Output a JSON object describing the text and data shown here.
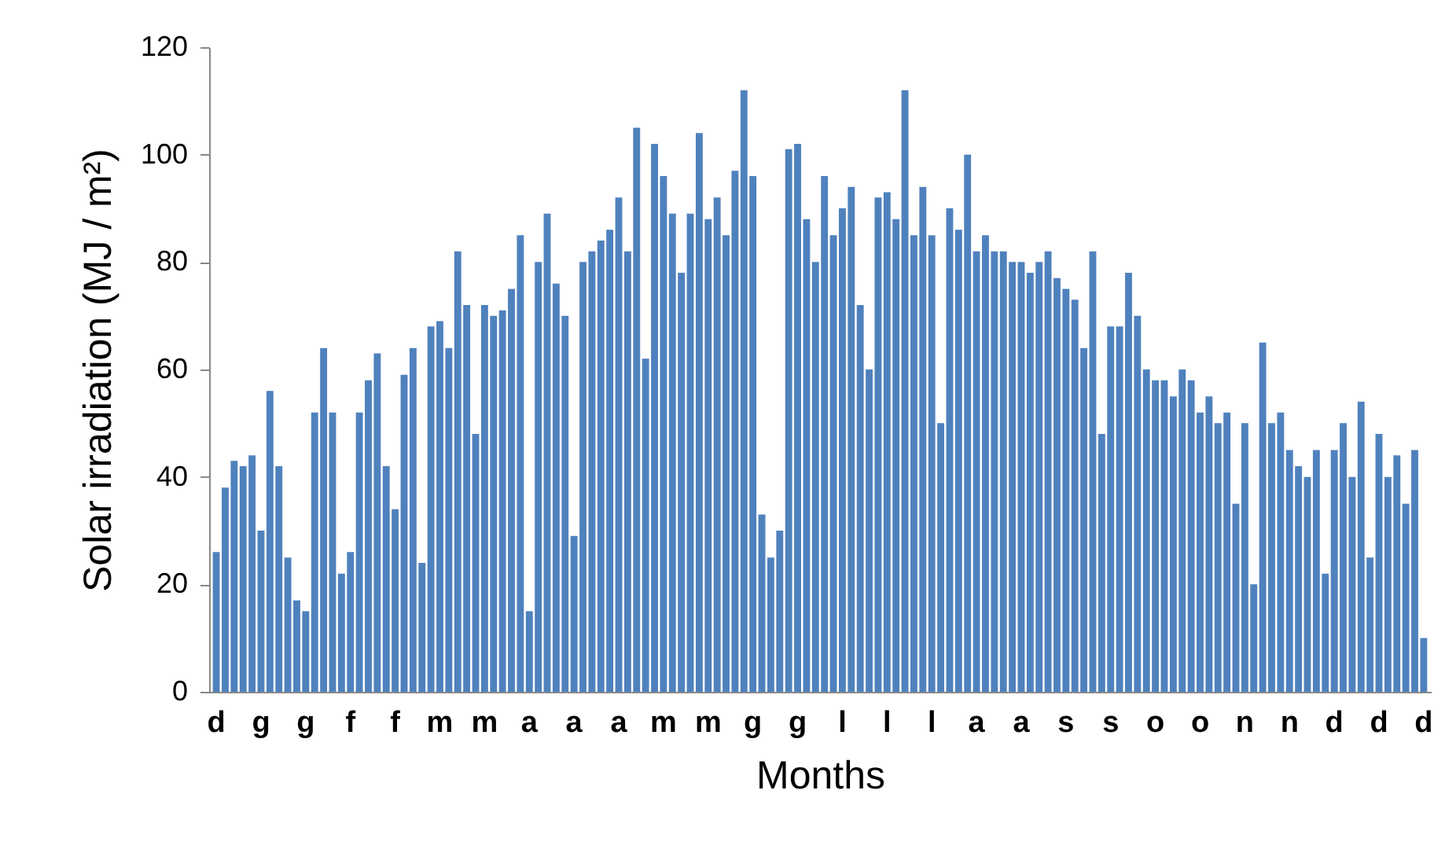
{
  "chart_data": {
    "type": "bar",
    "xlabel": "Months",
    "ylabel": "Solar irradiation (MJ / m²)",
    "categories": [
      "d",
      null,
      null,
      null,
      null,
      "g",
      null,
      null,
      null,
      null,
      "g",
      null,
      null,
      null,
      null,
      "f",
      null,
      null,
      null,
      null,
      "f",
      null,
      null,
      null,
      null,
      "m",
      null,
      null,
      null,
      null,
      "m",
      null,
      null,
      null,
      null,
      "a",
      null,
      null,
      null,
      null,
      "a",
      null,
      null,
      null,
      null,
      "a",
      null,
      null,
      null,
      null,
      "m",
      null,
      null,
      null,
      null,
      "m",
      null,
      null,
      null,
      null,
      "g",
      null,
      null,
      null,
      null,
      "g",
      null,
      null,
      null,
      null,
      "l",
      null,
      null,
      null,
      null,
      "l",
      null,
      null,
      null,
      null,
      "l",
      null,
      null,
      null,
      null,
      "a",
      null,
      null,
      null,
      null,
      "a",
      null,
      null,
      null,
      null,
      "s",
      null,
      null,
      null,
      null,
      "s",
      null,
      null,
      null,
      null,
      "o",
      null,
      null,
      null,
      null,
      "o",
      null,
      null,
      null,
      null,
      "n",
      null,
      null,
      null,
      null,
      "n",
      null,
      null,
      null,
      null,
      "d",
      null,
      null,
      null,
      null,
      "d",
      null,
      null,
      null,
      null,
      "d"
    ],
    "values": [
      26,
      38,
      43,
      42,
      44,
      30,
      56,
      42,
      25,
      17,
      15,
      52,
      64,
      52,
      22,
      26,
      52,
      58,
      63,
      42,
      34,
      59,
      64,
      24,
      68,
      69,
      64,
      82,
      72,
      48,
      72,
      70,
      71,
      75,
      85,
      15,
      80,
      89,
      76,
      70,
      29,
      80,
      82,
      84,
      86,
      92,
      82,
      105,
      62,
      102,
      96,
      89,
      78,
      89,
      104,
      88,
      92,
      85,
      97,
      112,
      96,
      33,
      25,
      30,
      101,
      102,
      88,
      80,
      96,
      85,
      90,
      94,
      72,
      60,
      92,
      93,
      88,
      112,
      85,
      94,
      85,
      50,
      90,
      86,
      100,
      82,
      85,
      82,
      82,
      80,
      80,
      78,
      80,
      82,
      77,
      75,
      73,
      64,
      82,
      48,
      68,
      68,
      78,
      70,
      60,
      58,
      58,
      55,
      60,
      58,
      52,
      55,
      50,
      52,
      35,
      50,
      20,
      65,
      50,
      52,
      45,
      42,
      40,
      45,
      22,
      45,
      50,
      40,
      54,
      25,
      48,
      40,
      44,
      35,
      45,
      10
    ],
    "color": "#4f81bd",
    "ylim": [
      0,
      120
    ],
    "yticks": [
      0,
      20,
      40,
      60,
      80,
      100,
      120
    ],
    "grid": false
  }
}
